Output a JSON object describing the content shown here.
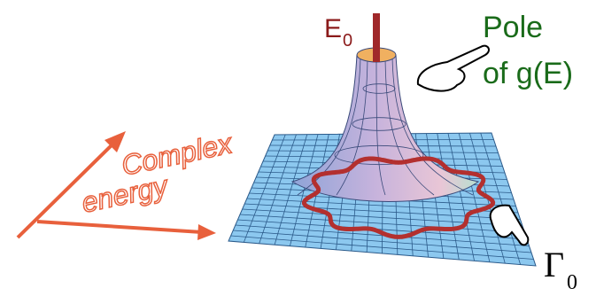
{
  "labels": {
    "pole_energy": "E",
    "pole_energy_sub": "0",
    "pole_line1": "Pole",
    "pole_line2": "of g(E)",
    "axis_line1": "Complex",
    "axis_line2": "energy",
    "contour": "Γ",
    "contour_sub": "0"
  }
}
